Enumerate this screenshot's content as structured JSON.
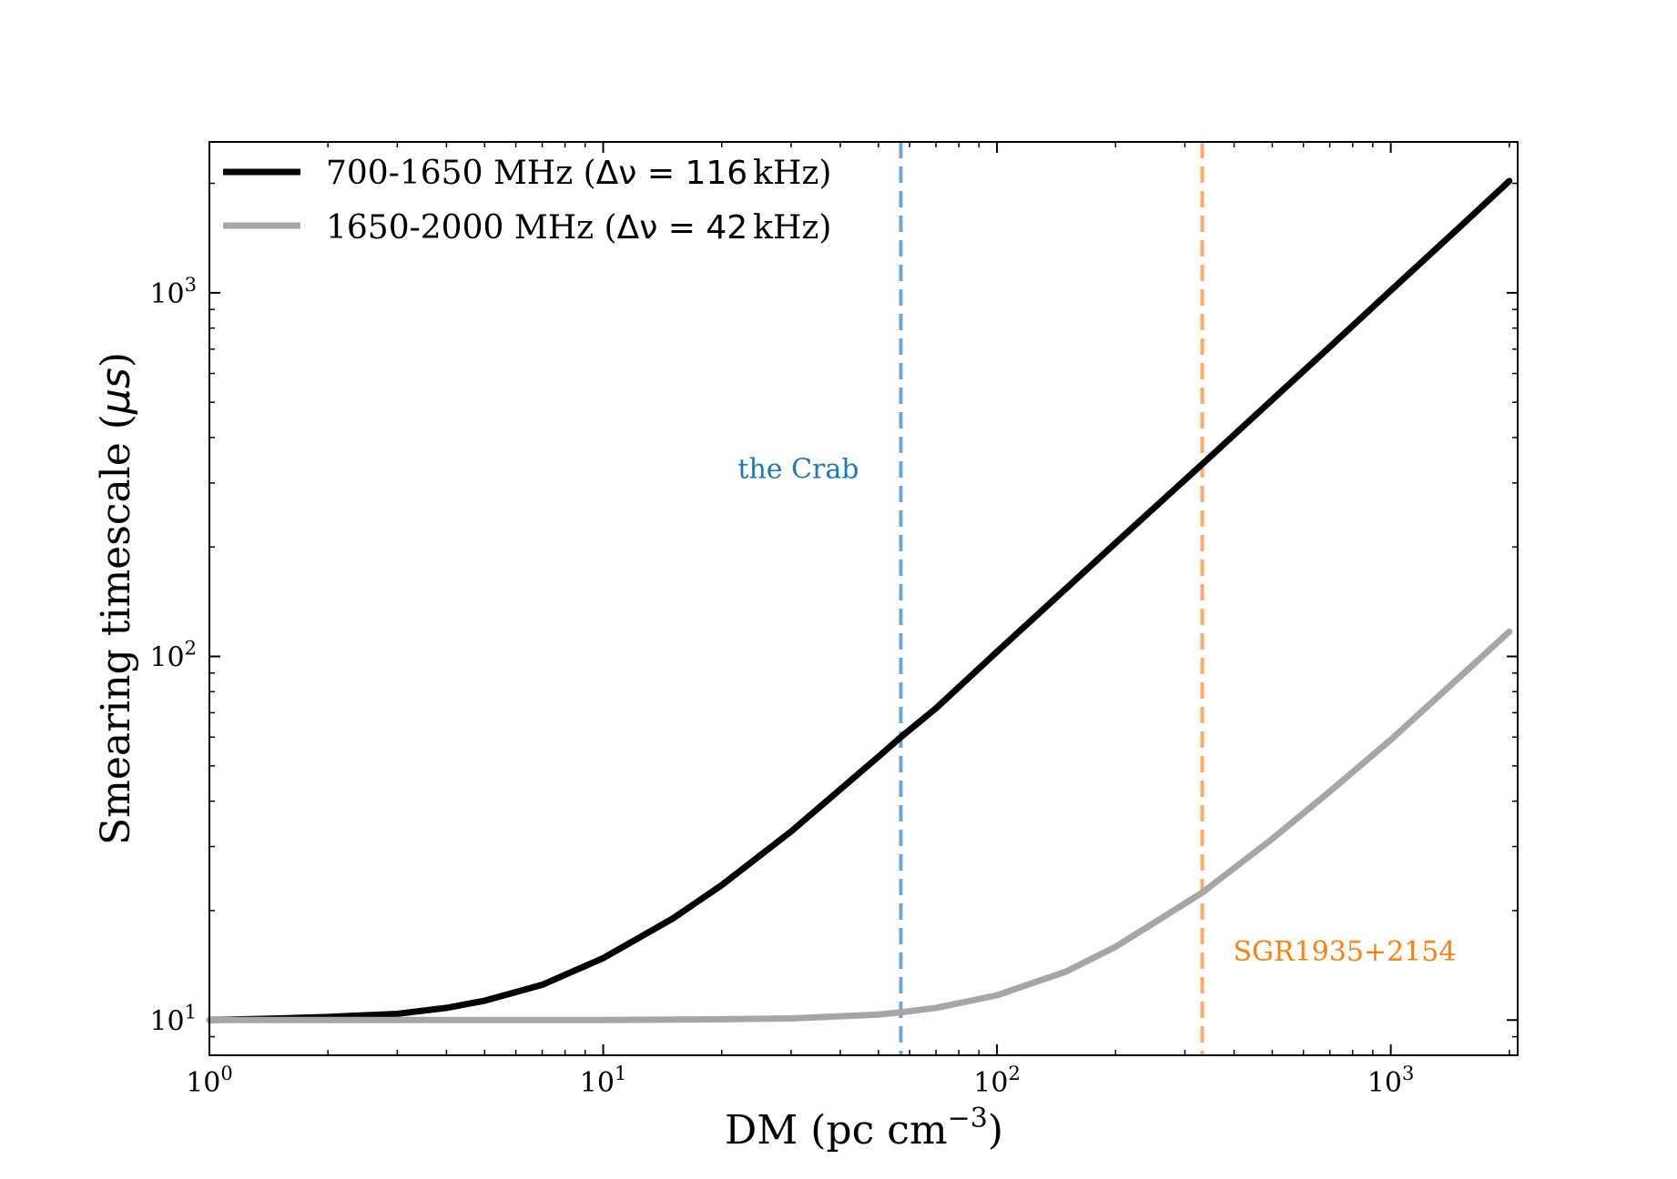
{
  "chart_data": {
    "type": "line",
    "xscale": "log",
    "yscale": "log",
    "xlim": [
      1,
      2100
    ],
    "ylim": [
      8,
      2600
    ],
    "xlabel_main": "DM (pc cm",
    "xlabel_exp": "−3",
    "xlabel_close": ")",
    "ylabel_main": "Smearing timescale (",
    "ylabel_mu": "μs",
    "ylabel_close": ")",
    "x_ticks": [
      {
        "value": 1,
        "base": "10",
        "exp": "0"
      },
      {
        "value": 10,
        "base": "10",
        "exp": "1"
      },
      {
        "value": 100,
        "base": "10",
        "exp": "2"
      },
      {
        "value": 1000,
        "base": "10",
        "exp": "3"
      }
    ],
    "y_ticks": [
      {
        "value": 10,
        "base": "10",
        "exp": "1"
      },
      {
        "value": 100,
        "base": "10",
        "exp": "2"
      },
      {
        "value": 1000,
        "base": "10",
        "exp": "3"
      }
    ],
    "series": [
      {
        "name": "700-1650 MHz",
        "legend_prefix": "700-1650 MHz (",
        "legend_math": "Δν = 116",
        "legend_unit": "kHz",
        "legend_suffix": ")",
        "color": "#000000",
        "x": [
          1,
          1.5,
          2,
          3,
          4,
          5,
          7,
          10,
          15,
          20,
          30,
          50,
          57,
          70,
          100,
          150,
          200,
          332,
          500,
          700,
          1000,
          1500,
          2000
        ],
        "values": [
          10.0,
          10.1,
          10.2,
          10.4,
          10.8,
          11.3,
          12.5,
          14.8,
          19.0,
          23.5,
          33,
          53,
          60,
          72,
          103,
          154,
          205,
          338,
          508,
          710,
          1015,
          1520,
          2030
        ]
      },
      {
        "name": "1650-2000 MHz",
        "legend_prefix": "1650-2000 MHz (",
        "legend_math": "Δν = 42",
        "legend_unit": "kHz",
        "legend_suffix": ")",
        "color": "#a6a6a6",
        "x": [
          1,
          3,
          10,
          20,
          30,
          50,
          57,
          70,
          100,
          150,
          200,
          332,
          500,
          700,
          1000,
          1500,
          2000
        ],
        "values": [
          10.0,
          10.0,
          10.0,
          10.05,
          10.1,
          10.35,
          10.5,
          10.8,
          11.7,
          13.6,
          15.9,
          22.4,
          31.5,
          42.5,
          59,
          88,
          117
        ]
      }
    ],
    "vlines": [
      {
        "x": 57,
        "label": "the Crab",
        "color": "#1f77b4",
        "label_y": 330
      },
      {
        "x": 332,
        "label": "SGR1935+2154",
        "color": "#ff7f0e",
        "label_y": 15.5
      }
    ]
  }
}
